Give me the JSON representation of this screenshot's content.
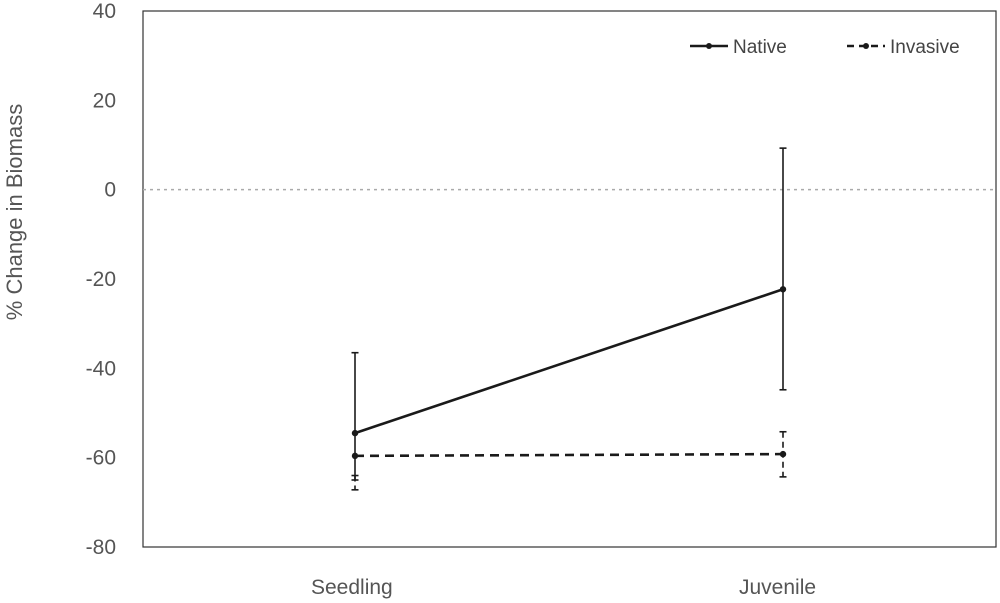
{
  "chart_data": {
    "type": "line",
    "title": "",
    "xlabel": "",
    "ylabel": "% Change in Biomass",
    "categories": [
      "Seedling",
      "Juvenile"
    ],
    "ylim": [
      -80,
      40
    ],
    "yticks": [
      40,
      20,
      0,
      -20,
      -40,
      -60,
      -80
    ],
    "reference_line": 0,
    "legend_position": "top-right",
    "series": [
      {
        "name": "Native",
        "style": "solid",
        "values": [
          -54.5,
          -22.3
        ],
        "error_upper": [
          -36.5,
          9.3
        ],
        "error_lower": [
          -65,
          -44.8
        ]
      },
      {
        "name": "Invasive",
        "style": "dashed",
        "values": [
          -59.6,
          -59.2
        ],
        "error_upper": [
          -64,
          -54.2
        ],
        "error_lower": [
          -67.2,
          -64.3
        ]
      }
    ]
  },
  "colors": {
    "line": "#1a1a1a",
    "axis": "#333333",
    "reference": "#aaaaaa",
    "text": "#555555"
  }
}
